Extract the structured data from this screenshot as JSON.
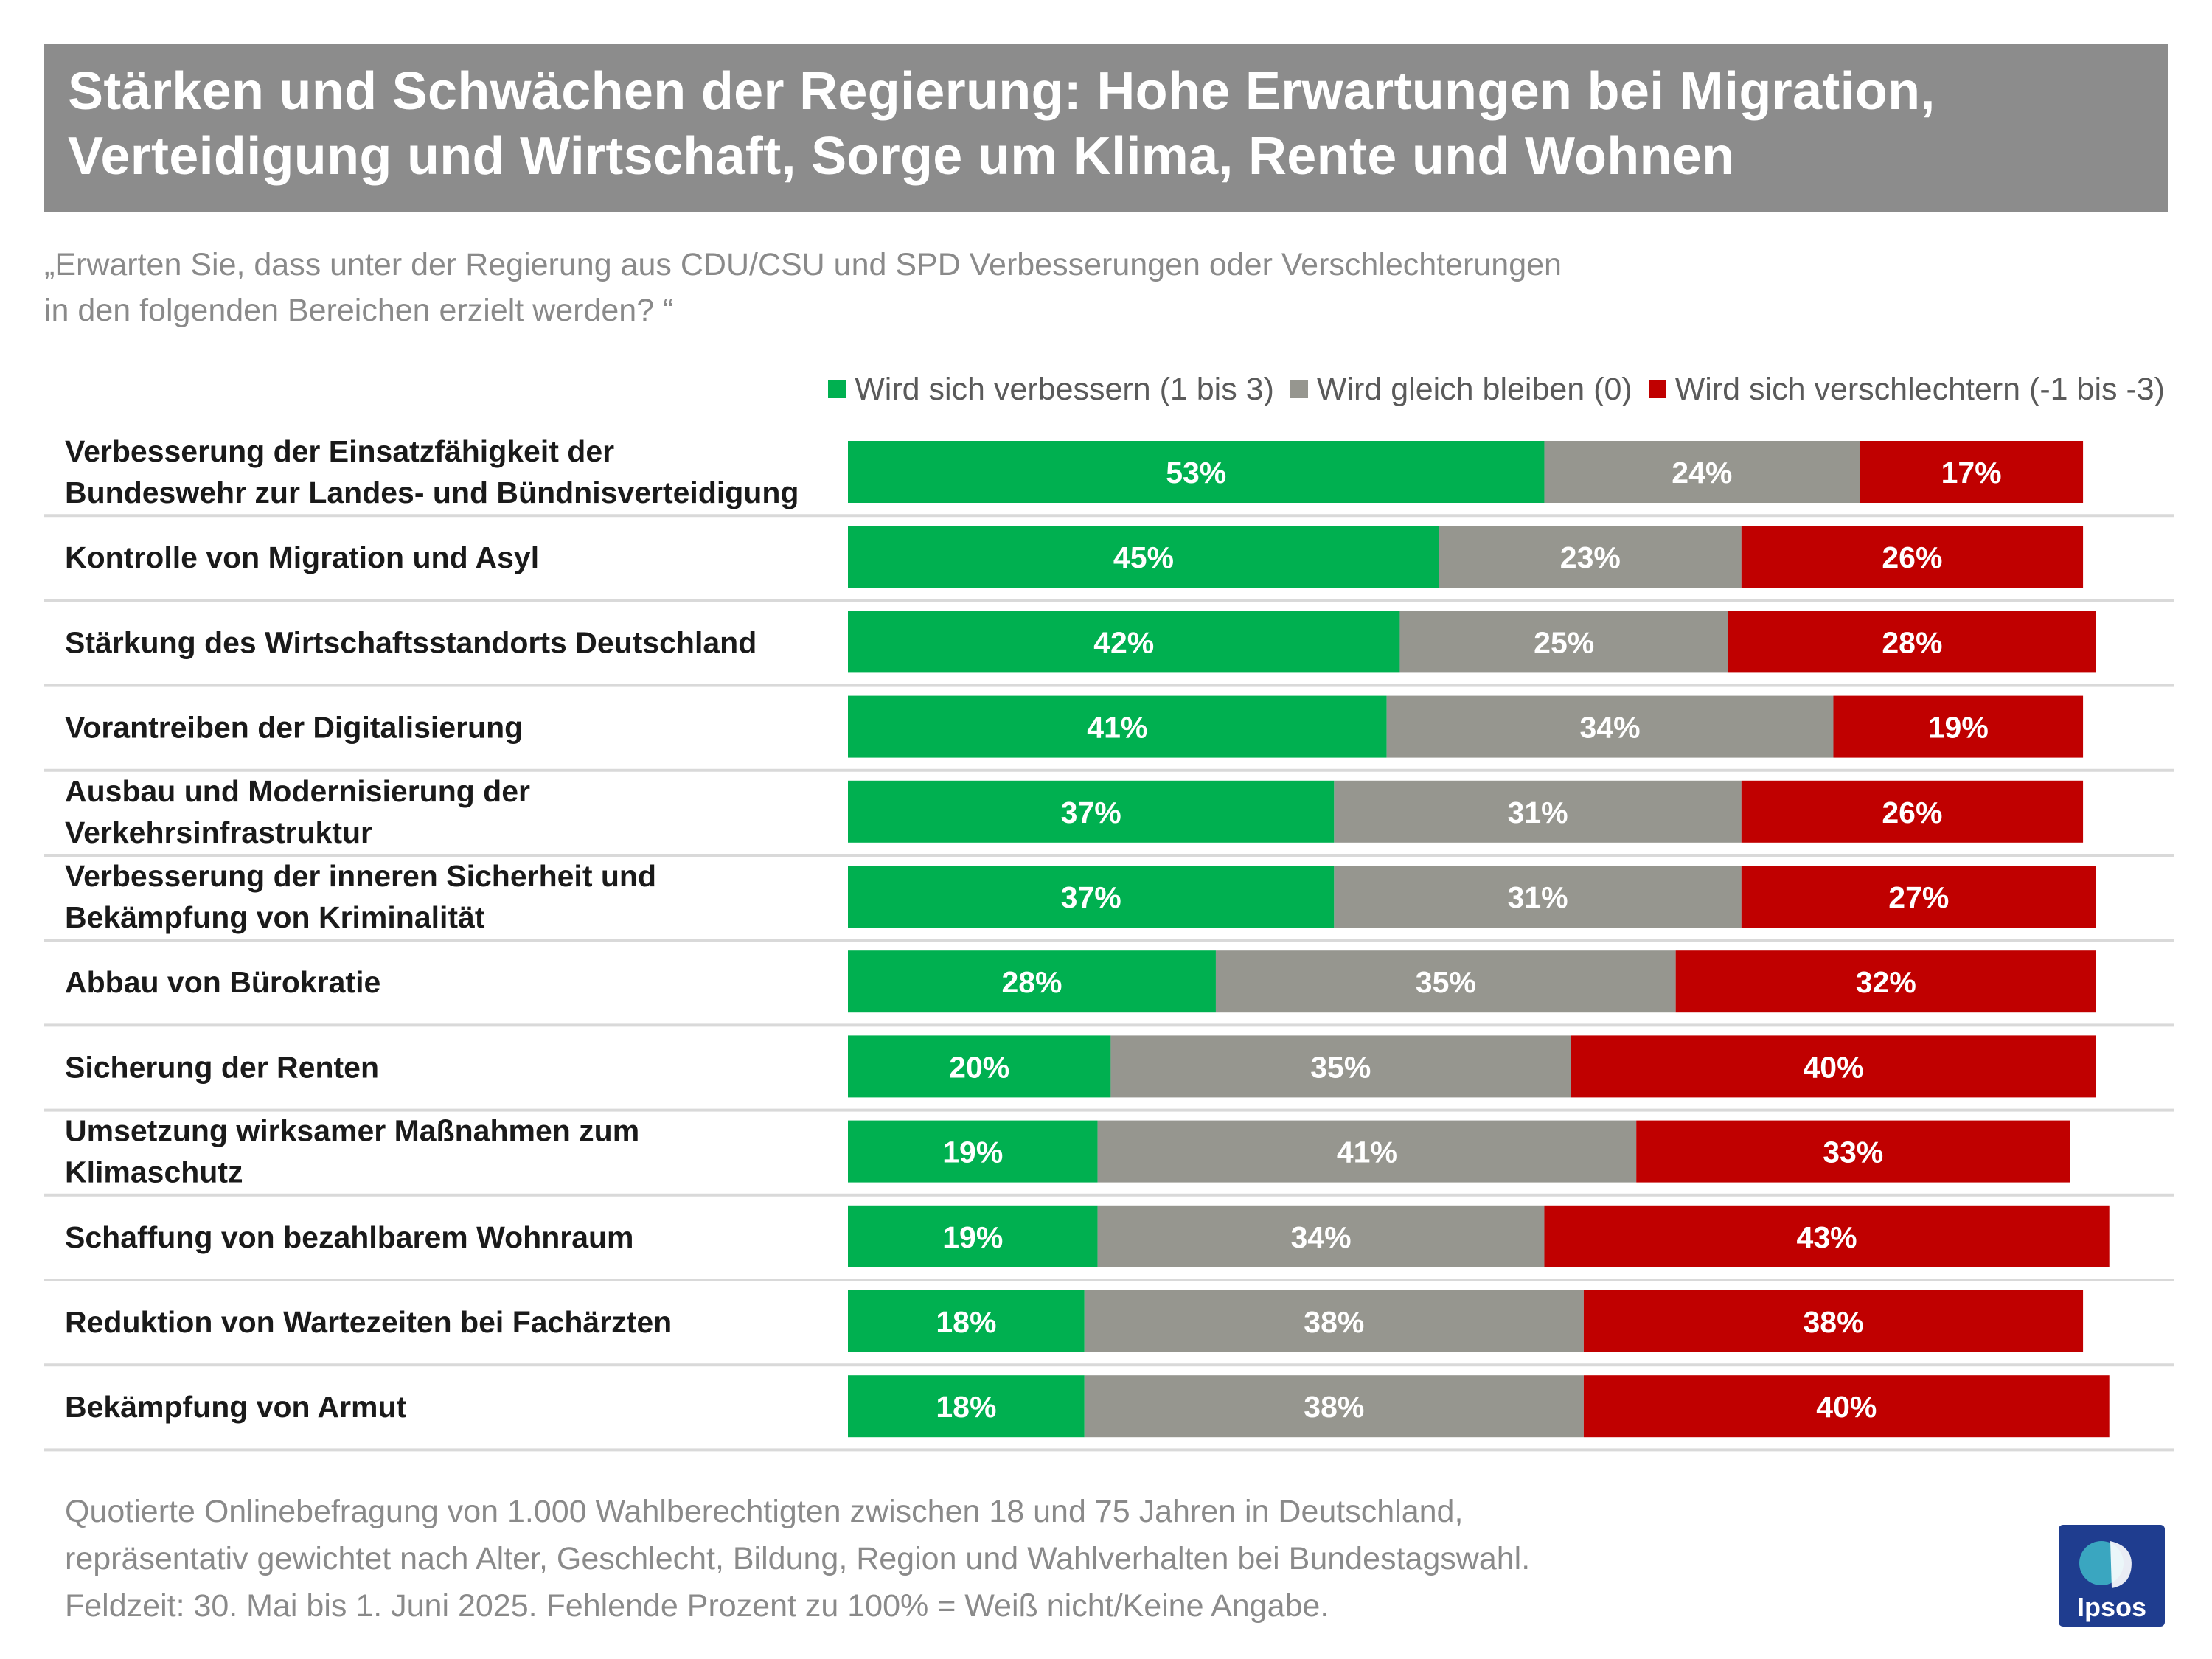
{
  "title": {
    "line1": "Stärken und Schwächen der Regierung: Hohe Erwartungen bei Migration,",
    "line2": "Verteidigung und Wirtschaft, Sorge um Klima, Rente und Wohnen"
  },
  "question": {
    "line1": "„Erwarten Sie, dass unter der Regierung aus CDU/CSU und SPD Verbesserungen oder Verschlechterungen",
    "line2": "in den folgenden Bereichen erzielt werden? “"
  },
  "legend": {
    "improve": "Wird sich verbessern (1 bis 3)",
    "same": "Wird gleich bleiben (0)",
    "worse": "Wird sich verschlechtern (-1 bis -3)"
  },
  "colors": {
    "improve": "#00b050",
    "same": "#96968f",
    "worse": "#c00000",
    "title_bg": "#8c8c8c",
    "separator": "#d9d9d9",
    "logo_bg": "#1f3d8f"
  },
  "chart_data": {
    "type": "bar",
    "orientation": "horizontal-stacked",
    "unit": "%",
    "categories": [
      [
        "Verbesserung der Einsatzfähigkeit der",
        "Bundeswehr zur Landes- und Bündnisverteidigung"
      ],
      [
        "Kontrolle von Migration und Asyl"
      ],
      [
        "Stärkung des Wirtschaftsstandorts Deutschland"
      ],
      [
        "Vorantreiben der Digitalisierung"
      ],
      [
        "Ausbau und Modernisierung der",
        "Verkehrsinfrastruktur"
      ],
      [
        "Verbesserung der inneren Sicherheit und",
        "Bekämpfung von Kriminalität"
      ],
      [
        "Abbau von Bürokratie"
      ],
      [
        "Sicherung der Renten"
      ],
      [
        "Umsetzung wirksamer Maßnahmen zum",
        "Klimaschutz"
      ],
      [
        "Schaffung von bezahlbarem Wohnraum"
      ],
      [
        "Reduktion von Wartezeiten bei Fachärzten"
      ],
      [
        "Bekämpfung von Armut"
      ]
    ],
    "series": [
      {
        "name": "Wird sich verbessern (1 bis 3)",
        "key": "improve",
        "values": [
          53,
          45,
          42,
          41,
          37,
          37,
          28,
          20,
          19,
          19,
          18,
          18
        ]
      },
      {
        "name": "Wird gleich bleiben (0)",
        "key": "same",
        "values": [
          24,
          23,
          25,
          34,
          31,
          31,
          35,
          35,
          41,
          34,
          38,
          38
        ]
      },
      {
        "name": "Wird sich verschlechtern (-1 bis -3)",
        "key": "worse",
        "values": [
          17,
          26,
          28,
          19,
          26,
          27,
          32,
          40,
          33,
          43,
          38,
          40
        ]
      }
    ]
  },
  "footnote": {
    "line1": "Quotierte Onlinebefragung von 1.000 Wahlberechtigten zwischen 18 und 75 Jahren in Deutschland,",
    "line2": "repräsentativ gewichtet nach Alter, Geschlecht, Bildung, Region und Wahlverhalten bei Bundestagswahl.",
    "line3": "Feldzeit: 30.  Mai bis 1. Juni 2025. Fehlende Prozent zu 100% = Weiß nicht/Keine Angabe."
  },
  "logo": {
    "text": "Ipsos"
  }
}
